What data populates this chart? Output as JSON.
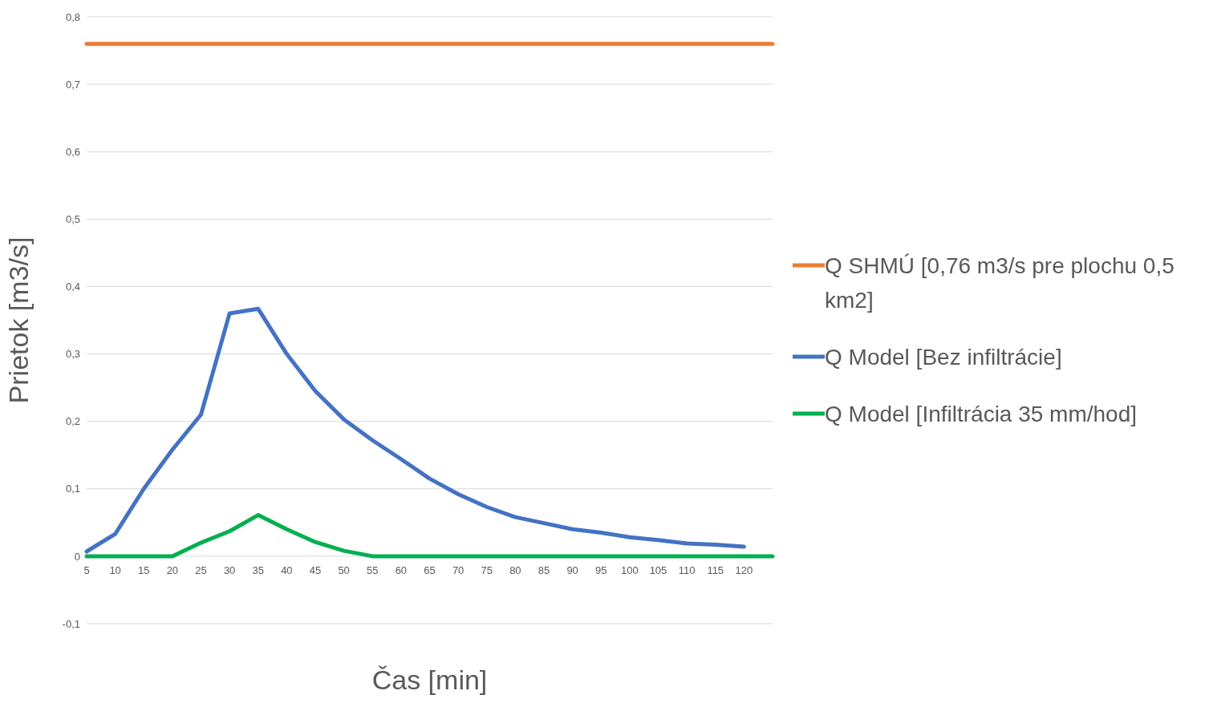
{
  "chart_data": {
    "type": "line",
    "xlabel": "Čas [min]",
    "ylabel": "Prietok [m3/s]",
    "categories": [
      "5",
      "10",
      "15",
      "20",
      "25",
      "30",
      "35",
      "40",
      "45",
      "50",
      "55",
      "60",
      "65",
      "70",
      "75",
      "80",
      "85",
      "90",
      "95",
      "100",
      "105",
      "110",
      "115",
      "120",
      null
    ],
    "series": [
      {
        "name": "Q SHMÚ [0,76 m3/s pre plochu 0,5 km2]",
        "color": "#ed7d31",
        "values": [
          0.76,
          0.76,
          0.76,
          0.76,
          0.76,
          0.76,
          0.76,
          0.76,
          0.76,
          0.76,
          0.76,
          0.76,
          0.76,
          0.76,
          0.76,
          0.76,
          0.76,
          0.76,
          0.76,
          0.76,
          0.76,
          0.76,
          0.76,
          0.76,
          0.76
        ]
      },
      {
        "name": "Q Model [Bez infiltrácie]",
        "color": "#4472c4",
        "values": [
          0.007,
          0.033,
          0.1,
          0.158,
          0.21,
          0.36,
          0.367,
          0.3,
          0.245,
          0.203,
          0.172,
          0.144,
          0.115,
          0.092,
          0.073,
          0.058,
          0.049,
          0.04,
          0.035,
          0.028,
          0.024,
          0.019,
          0.017,
          0.014,
          null
        ]
      },
      {
        "name": "Q Model [Infiltrácia 35 mm/hod]",
        "color": "#00b050",
        "values": [
          0,
          0,
          0,
          0,
          0.02,
          0.037,
          0.061,
          0.04,
          0.021,
          0.008,
          0,
          0,
          0,
          0,
          0,
          0,
          0,
          0,
          0,
          0,
          0,
          0,
          0,
          0,
          0
        ]
      }
    ],
    "ylim": [
      -0.1,
      0.8
    ],
    "yticks": [
      {
        "value": -0.1,
        "label": "-0,1"
      },
      0,
      {
        "value": 0.1,
        "label": "0,1"
      },
      {
        "value": 0.2,
        "label": "0,2"
      },
      {
        "value": 0.3,
        "label": "0,3"
      },
      {
        "value": 0.4,
        "label": "0,4"
      },
      {
        "value": 0.5,
        "label": "0,5"
      },
      {
        "value": 0.6,
        "label": "0,6"
      },
      {
        "value": 0.7,
        "label": "0,7"
      },
      {
        "value": 0.8,
        "label": "0,8"
      }
    ],
    "grid": "y",
    "legend": "right",
    "marker": "none",
    "line_style": "solid"
  }
}
